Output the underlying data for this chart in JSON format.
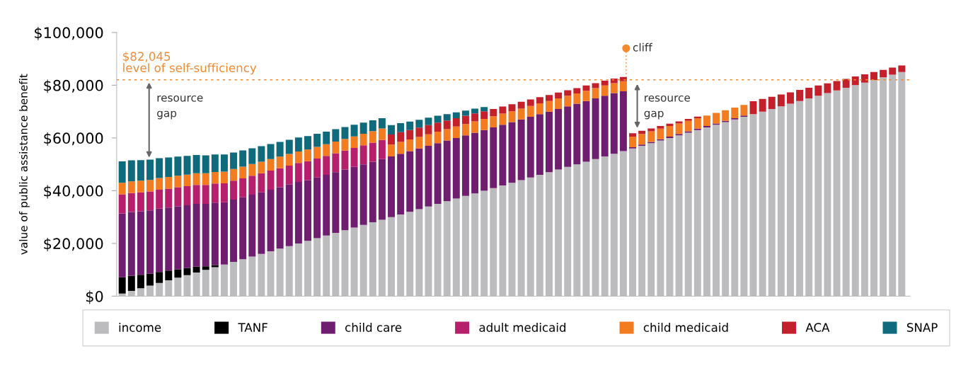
{
  "chart_data": {
    "type": "bar",
    "stacked": true,
    "ylabel": "value of public assistance benefit",
    "categories": [
      null,
      null,
      null,
      null,
      null,
      null,
      null,
      null,
      null,
      null,
      null,
      null,
      null,
      null,
      null,
      null,
      null,
      null,
      null,
      null,
      null,
      null,
      null,
      null,
      null,
      null,
      null,
      null,
      null,
      null,
      null,
      null,
      null,
      null,
      null,
      null,
      null,
      null,
      null,
      null,
      null,
      null,
      null,
      null,
      null,
      null,
      null,
      null,
      null,
      null,
      null,
      null,
      null,
      null,
      null,
      null,
      null,
      null,
      null,
      null,
      null,
      null,
      null,
      null,
      null,
      null,
      null,
      null,
      null,
      null,
      null,
      null,
      null,
      null,
      null,
      null,
      null,
      null,
      null,
      null,
      null,
      null,
      null,
      null,
      null
    ],
    "series": [
      {
        "name": "income",
        "color": "#bcbcbf",
        "values": [
          1000,
          2000,
          3000,
          4000,
          5000,
          6000,
          7000,
          8000,
          9000,
          10000,
          11000,
          12000,
          13000,
          14000,
          15000,
          16000,
          17000,
          18000,
          19000,
          20000,
          21000,
          22000,
          23000,
          24000,
          25000,
          26000,
          27000,
          28000,
          29000,
          30000,
          31000,
          32000,
          33000,
          34000,
          35000,
          36000,
          37000,
          38000,
          39000,
          40000,
          41000,
          42000,
          43000,
          44000,
          45000,
          46000,
          47000,
          48000,
          49000,
          50000,
          51000,
          52000,
          53000,
          54000,
          55000,
          56000,
          57000,
          58000,
          59000,
          60000,
          61000,
          62000,
          63000,
          64000,
          65000,
          66000,
          67000,
          68000,
          69000,
          70000,
          71000,
          72000,
          73000,
          74000,
          75000,
          76000,
          77000,
          78000,
          79000,
          80000,
          81000,
          82000,
          83000,
          84000,
          85000
        ]
      },
      {
        "name": "TANF",
        "color": "#000000",
        "values": [
          6200,
          5800,
          5100,
          4500,
          4200,
          3700,
          3200,
          2700,
          2200,
          1300,
          800,
          null,
          null,
          null,
          null,
          null,
          null,
          null,
          null,
          null,
          null,
          null,
          null,
          null,
          null,
          null,
          null,
          null,
          null,
          null,
          null,
          null,
          null,
          null,
          null,
          null,
          null,
          null,
          null,
          null,
          null,
          null,
          null,
          null,
          null,
          null,
          null,
          null,
          null,
          null,
          null,
          null,
          null,
          null,
          null,
          null,
          null,
          null,
          null,
          null,
          null,
          null,
          null,
          null,
          null,
          null,
          null,
          null,
          null,
          null,
          null,
          null,
          null,
          null,
          null,
          null,
          null,
          null,
          null,
          null,
          null,
          null,
          null,
          null,
          null
        ]
      },
      {
        "name": "child care",
        "color": "#6f1e6f",
        "values": [
          24200,
          24100,
          24100,
          24000,
          24000,
          23900,
          23900,
          23800,
          23800,
          23700,
          23700,
          23600,
          23600,
          23500,
          23500,
          23400,
          23400,
          23300,
          23300,
          23300,
          23000,
          23000,
          23000,
          23000,
          23000,
          23000,
          23000,
          23000,
          23000,
          23000,
          23000,
          23000,
          23000,
          23000,
          23000,
          23000,
          23000,
          23000,
          23000,
          23000,
          23000,
          23000,
          23000,
          23000,
          23000,
          23000,
          23000,
          23000,
          23000,
          23000,
          23000,
          23000,
          23000,
          23000,
          22700,
          500,
          500,
          500,
          500,
          500,
          500,
          500,
          500,
          500,
          500,
          500,
          500,
          500,
          null,
          null,
          null,
          null,
          null,
          null,
          null,
          null,
          null,
          null,
          null,
          null,
          null,
          null,
          null,
          null,
          null
        ]
      },
      {
        "name": "adult medicaid",
        "color": "#b51f6c",
        "values": [
          7200,
          7200,
          7200,
          7200,
          7200,
          7200,
          7200,
          7200,
          7200,
          7200,
          7200,
          7200,
          7200,
          7200,
          7200,
          7200,
          7200,
          7200,
          7200,
          7200,
          7200,
          7200,
          7200,
          7200,
          7200,
          7200,
          7200,
          7200,
          7200,
          null,
          null,
          null,
          null,
          null,
          null,
          null,
          null,
          null,
          null,
          null,
          null,
          null,
          null,
          null,
          null,
          null,
          null,
          null,
          null,
          null,
          null,
          null,
          null,
          null,
          null,
          null,
          null,
          null,
          null,
          null,
          null,
          null,
          null,
          null,
          null,
          null,
          null,
          null,
          null,
          null,
          null,
          null,
          null,
          null,
          null,
          null,
          null,
          null,
          null,
          null,
          null,
          null,
          null,
          null,
          null
        ]
      },
      {
        "name": "child medicaid",
        "color": "#f47c20",
        "values": [
          4400,
          4400,
          4400,
          4400,
          4400,
          4400,
          4400,
          4400,
          4400,
          4400,
          4400,
          4400,
          4400,
          4400,
          4400,
          4400,
          4400,
          4400,
          4400,
          4400,
          4400,
          4400,
          4400,
          4400,
          4400,
          4400,
          4400,
          4400,
          4400,
          4500,
          4500,
          4400,
          4400,
          4400,
          4400,
          4300,
          4300,
          4300,
          4300,
          4200,
          4200,
          4200,
          4100,
          4100,
          4100,
          4100,
          4000,
          4000,
          4000,
          3900,
          3900,
          3900,
          3900,
          3800,
          3800,
          4000,
          4000,
          4000,
          4000,
          4000,
          4000,
          4000,
          4000,
          4000,
          4000,
          4000,
          4000,
          4000,
          null,
          null,
          null,
          null,
          null,
          null,
          null,
          null,
          null,
          null,
          null,
          null,
          null,
          null,
          null,
          null,
          null
        ]
      },
      {
        "name": "ACA",
        "color": "#c4202c",
        "values": [
          null,
          null,
          null,
          null,
          null,
          null,
          null,
          null,
          null,
          null,
          null,
          null,
          null,
          null,
          null,
          null,
          null,
          null,
          null,
          null,
          null,
          null,
          null,
          null,
          null,
          null,
          null,
          null,
          null,
          3800,
          3700,
          3600,
          3500,
          3500,
          3400,
          3300,
          3200,
          3100,
          3000,
          2900,
          2800,
          2700,
          2700,
          2600,
          2500,
          2400,
          2300,
          2200,
          2100,
          2000,
          2000,
          1900,
          1800,
          1700,
          1600,
          1300,
          1200,
          1100,
          1000,
          900,
          800,
          700,
          600,
          null,
          null,
          null,
          null,
          null,
          4900,
          4800,
          4600,
          4500,
          4300,
          4200,
          4000,
          3900,
          3700,
          3600,
          3400,
          3300,
          3100,
          3000,
          2800,
          2700,
          2500
        ]
      },
      {
        "name": "SNAP",
        "color": "#0f6a7c",
        "values": [
          8100,
          8000,
          7800,
          7700,
          7500,
          7400,
          7200,
          7100,
          6900,
          6800,
          6600,
          6500,
          6300,
          6200,
          6000,
          5900,
          5700,
          5600,
          5400,
          5300,
          5100,
          5000,
          4800,
          4700,
          4500,
          4400,
          4200,
          4100,
          3900,
          3600,
          3400,
          3200,
          3000,
          2800,
          2600,
          2400,
          2200,
          2000,
          1800,
          1600,
          null,
          null,
          null,
          null,
          null,
          null,
          null,
          null,
          null,
          null,
          null,
          null,
          null,
          null,
          null,
          null,
          null,
          null,
          null,
          null,
          null,
          null,
          null,
          null,
          null,
          null,
          null,
          null,
          null,
          null,
          null,
          null,
          null,
          null,
          null,
          null,
          null,
          null,
          null,
          null,
          null,
          null,
          null,
          null,
          null
        ]
      }
    ],
    "ylim": [
      0,
      100000
    ],
    "yticks": [
      {
        "value": 0,
        "label": "$0"
      },
      {
        "value": 20000,
        "label": "$20,000"
      },
      {
        "value": 40000,
        "label": "$40,000"
      },
      {
        "value": 60000,
        "label": "$60,000"
      },
      {
        "value": 80000,
        "label": "$80,000"
      },
      {
        "value": 100000,
        "label": "$100,000"
      }
    ],
    "ref_lines": [
      {
        "axis": "y",
        "value": 82045,
        "label": "$82,045\nlevel of self-sufficiency",
        "color": "#f28a30",
        "line_style": "dotted"
      }
    ],
    "annotations": [
      "cliff",
      "resource\ngap",
      "resource\ngap"
    ],
    "grid": false,
    "legend": "bottom"
  }
}
